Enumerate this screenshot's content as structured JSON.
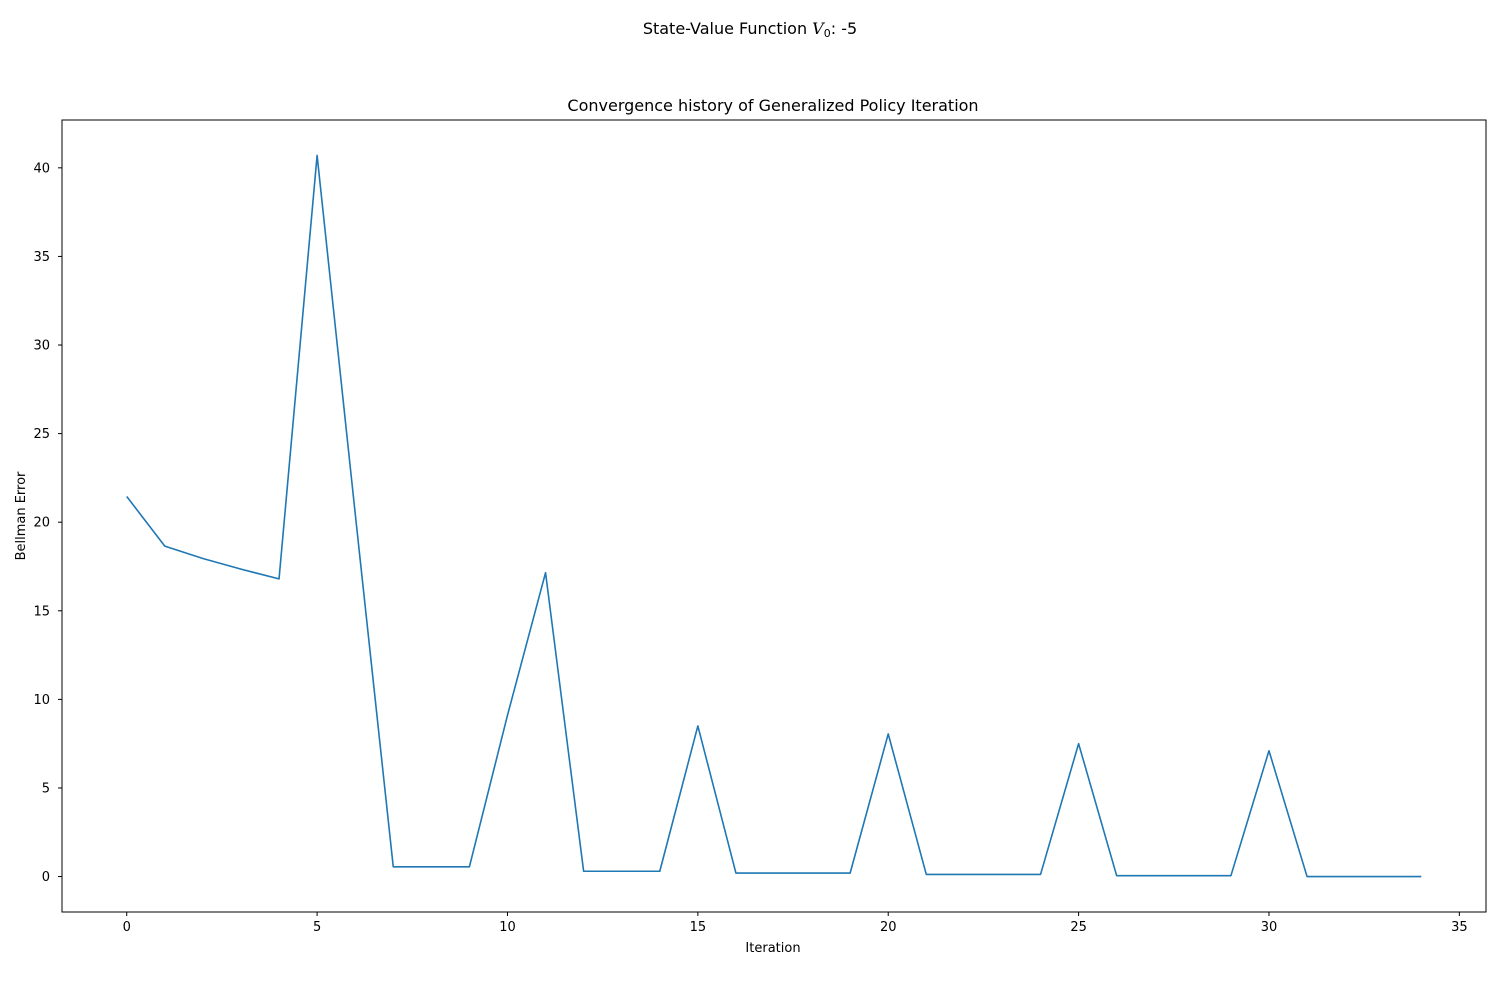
{
  "figure": {
    "suptitle_prefix": "State-Value Function ",
    "suptitle_var": "V",
    "suptitle_sub": "0",
    "suptitle_suffix": ": -5"
  },
  "chart_data": {
    "type": "line",
    "title": "Convergence history of Generalized Policy Iteration",
    "xlabel": "Iteration",
    "ylabel": "Bellman Error",
    "xlim": [
      -1.7,
      35.7
    ],
    "ylim": [
      -2.0,
      42.7
    ],
    "xticks": [
      0,
      5,
      10,
      15,
      20,
      25,
      30,
      35
    ],
    "yticks": [
      0,
      5,
      10,
      15,
      20,
      25,
      30,
      35,
      40
    ],
    "grid": false,
    "line_color": "#1f77b4",
    "series": [
      {
        "x": [
          0,
          1,
          2,
          3,
          4,
          5,
          6,
          7,
          8,
          9,
          10,
          11,
          12,
          13,
          14,
          15,
          16,
          17,
          18,
          19,
          20,
          21,
          22,
          23,
          24,
          25,
          26,
          27,
          28,
          29,
          30,
          31,
          32,
          33,
          34
        ],
        "values": [
          21.45,
          18.65,
          17.95,
          17.35,
          16.8,
          40.7,
          20.5,
          0.55,
          0.55,
          0.55,
          9.1,
          17.15,
          0.3,
          0.3,
          0.3,
          8.5,
          0.2,
          0.2,
          0.2,
          0.2,
          8.05,
          0.12,
          0.12,
          0.12,
          0.12,
          7.5,
          0.05,
          0.05,
          0.05,
          0.05,
          7.1,
          0.0,
          0.0,
          0.0,
          0.0
        ]
      }
    ]
  }
}
